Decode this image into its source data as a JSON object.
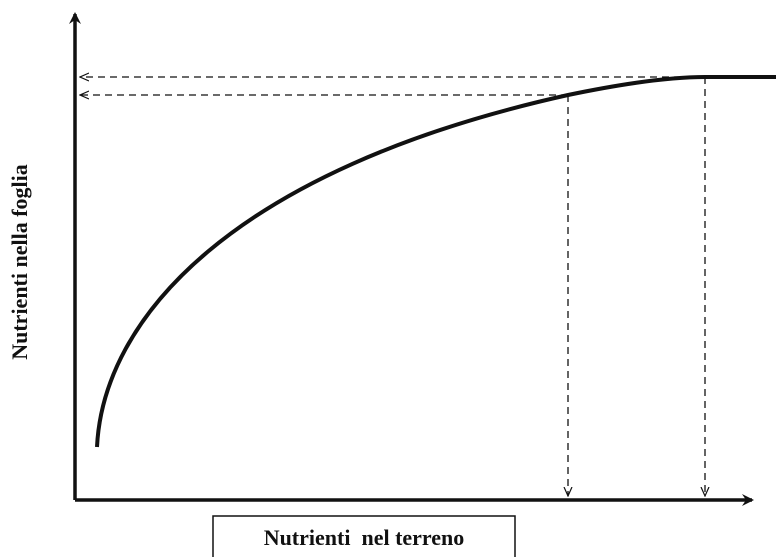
{
  "y_axis_label": "Nutrienti nella foglia",
  "x_axis_label": "Nutrienti  nel terreno"
}
